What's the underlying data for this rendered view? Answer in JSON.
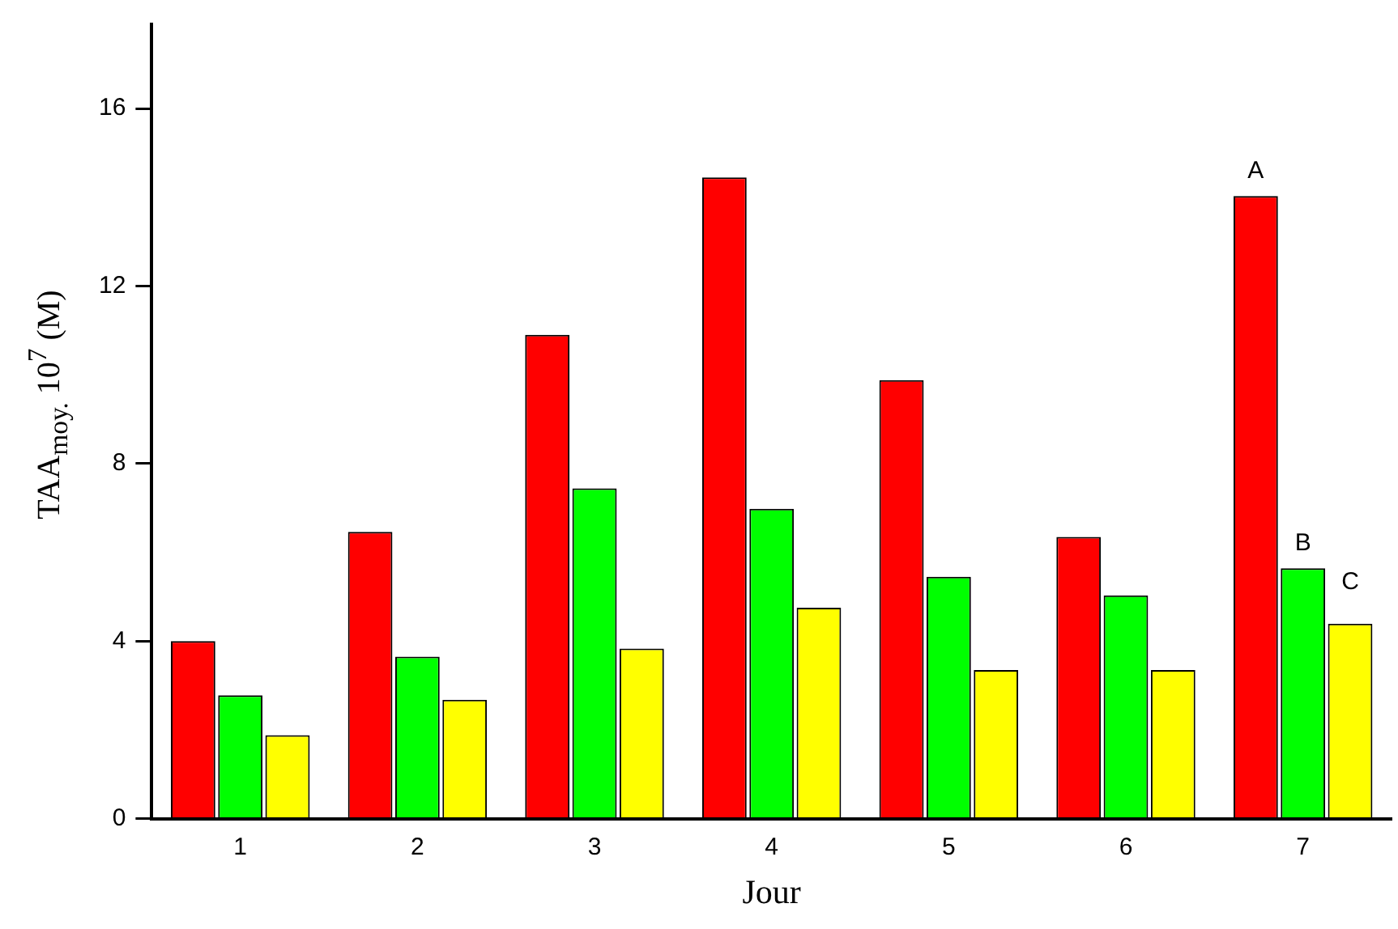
{
  "chart_data": {
    "type": "bar",
    "xlabel": "Jour",
    "ylabel": "TAA$_{moy.}$ 10$^{7}$ (M)",
    "categories": [
      "1",
      "2",
      "3",
      "4",
      "5",
      "6",
      "7"
    ],
    "series": [
      {
        "color": "#ff0000",
        "values": [
          4.0,
          6.46,
          10.9,
          14.45,
          9.88,
          6.35,
          14.03
        ]
      },
      {
        "color": "#00ff00",
        "values": [
          2.78,
          3.65,
          7.44,
          6.98,
          5.45,
          5.03,
          5.64
        ]
      },
      {
        "color": "#ffff00",
        "values": [
          1.88,
          2.68,
          3.83,
          4.75,
          3.35,
          3.35,
          4.39
        ]
      }
    ],
    "ylim": [
      0,
      17.9
    ],
    "yticks": [
      0,
      4,
      8,
      12,
      16
    ],
    "grid": false,
    "legend": false,
    "annotations": [
      "A",
      "B",
      "C"
    ]
  }
}
